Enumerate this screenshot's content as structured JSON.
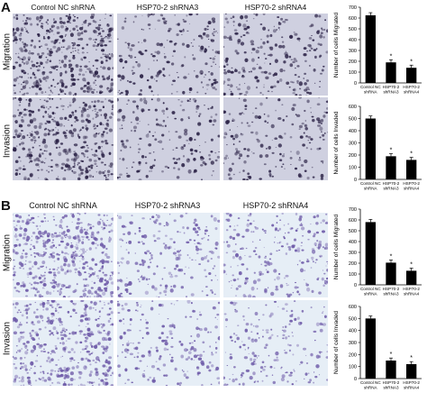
{
  "panels": [
    {
      "letter": "A",
      "columns": [
        "Control NC shRNA",
        "HSP70-2 shRNA3",
        "HSP70-2 shRNA4"
      ],
      "rows": [
        "Migration",
        "Invasion"
      ],
      "colors": {
        "bg": "#cfd0e0",
        "cell": "#2d2448"
      }
    },
    {
      "letter": "B",
      "columns": [
        "Control NC shRNA",
        "HSP70-2 shRNA3",
        "HSP70-2 shRNA4"
      ],
      "rows": [
        "Migration",
        "Invasion"
      ],
      "colors": {
        "bg": "#e6eef6",
        "cell": "#6e5aa8"
      }
    }
  ],
  "chart_data": [
    {
      "type": "bar",
      "panel": "A",
      "categories": [
        "Control NC shRNA",
        "HSP70-2 shRNA3",
        "HSP70-2 shRNA4"
      ],
      "values": [
        625,
        190,
        140
      ],
      "ylabel": "Number of cells Migrated",
      "ylim": [
        0,
        700
      ],
      "yticks": [
        "0",
        "100",
        "200",
        "300",
        "400",
        "500",
        "600",
        "700"
      ],
      "significance": [
        "",
        "*",
        "*"
      ]
    },
    {
      "type": "bar",
      "panel": "A",
      "categories": [
        "Control NC shRNA",
        "HSP70-2 shRNA3",
        "HSP70-2 shRNA4"
      ],
      "values": [
        500,
        190,
        160
      ],
      "ylabel": "Number of cells Invaded",
      "ylim": [
        0,
        600
      ],
      "yticks": [
        "0",
        "100",
        "200",
        "300",
        "400",
        "500",
        "600"
      ],
      "significance": [
        "",
        "*",
        "*"
      ]
    },
    {
      "type": "bar",
      "panel": "B",
      "categories": [
        "Control NC shRNA",
        "HSP70-2 shRNA3",
        "HSP70-2 shRNA4"
      ],
      "values": [
        580,
        205,
        130
      ],
      "ylabel": "Number of cells Migrated",
      "ylim": [
        0,
        700
      ],
      "yticks": [
        "0",
        "100",
        "200",
        "300",
        "400",
        "500",
        "600",
        "700"
      ],
      "significance": [
        "",
        "*",
        "*"
      ]
    },
    {
      "type": "bar",
      "panel": "B",
      "categories": [
        "Control NC shRNA",
        "HSP70-2 shRNA3",
        "HSP70-2 shRNA4"
      ],
      "values": [
        500,
        150,
        120
      ],
      "ylabel": "Number of cells Invaded",
      "ylim": [
        0,
        600
      ],
      "yticks": [
        "0",
        "100",
        "200",
        "300",
        "400",
        "500",
        "600"
      ],
      "significance": [
        "",
        "*",
        "*"
      ]
    }
  ]
}
